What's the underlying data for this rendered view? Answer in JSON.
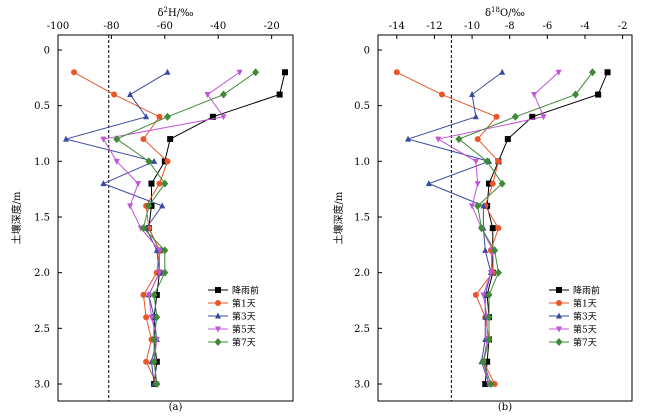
{
  "chart_data": [
    {
      "type": "line",
      "panel_label": "(a)",
      "xlabel_base": "δ",
      "xlabel_sup": "2",
      "xlabel_rest": "H/‰",
      "ylabel": "土壤深度/m",
      "xlim": [
        -100,
        -12
      ],
      "ylim": [
        0,
        3.1
      ],
      "x_ticks": [
        -100,
        -80,
        -60,
        -40,
        -20
      ],
      "y_ticks": [
        0,
        0.5,
        1.0,
        1.5,
        2.0,
        2.5,
        3.0
      ],
      "y_tick_labels": [
        "0",
        "0.5",
        "1.0",
        "1.5",
        "2.0",
        "2.5",
        "3.0"
      ],
      "reference_line_x": -81,
      "legend_position": "lower-right",
      "depths": [
        0.2,
        0.4,
        0.6,
        0.8,
        1.0,
        1.2,
        1.4,
        1.6,
        1.8,
        2.0,
        2.2,
        2.4,
        2.6,
        2.8,
        3.0
      ],
      "series": [
        {
          "name": "降雨前",
          "color": "#000000",
          "marker": "square",
          "values": [
            -15,
            -17,
            -42,
            -58,
            -60,
            -65,
            -65,
            -66,
            -62,
            -62,
            -63,
            -64,
            -64,
            -63,
            -64
          ]
        },
        {
          "name": "第1天",
          "color": "#e8562a",
          "marker": "circle",
          "values": [
            -94,
            -79,
            -62,
            -68,
            -59,
            -62,
            -67,
            -66,
            -62,
            -63,
            -68,
            -67,
            -65,
            -67,
            -63
          ]
        },
        {
          "name": "第3天",
          "color": "#3b4aa0",
          "marker": "triangle-up",
          "values": [
            -59,
            -73,
            -67,
            -97,
            -64,
            -83,
            -61,
            -67,
            -63,
            -62,
            -66,
            -64,
            -63,
            -65,
            -64
          ]
        },
        {
          "name": "第5天",
          "color": "#c055d8",
          "marker": "triangle-down",
          "values": [
            -32,
            -44,
            -38,
            -83,
            -78,
            -70,
            -73,
            -69,
            -62,
            -62,
            -66,
            -65,
            -63,
            -64,
            -63
          ]
        },
        {
          "name": "第7天",
          "color": "#3e8a35",
          "marker": "diamond",
          "values": [
            -26,
            -38,
            -59,
            -78,
            -66,
            -60,
            -66,
            -68,
            -60,
            -60,
            -64,
            -63,
            -64,
            -64,
            -63
          ]
        }
      ]
    },
    {
      "type": "line",
      "panel_label": "(b)",
      "xlabel_base": "δ",
      "xlabel_sup": "18",
      "xlabel_rest": "O/‰",
      "ylabel": "土壤深度/m",
      "xlim": [
        -15,
        -1.5
      ],
      "ylim": [
        0,
        3.1
      ],
      "x_ticks": [
        -14,
        -12,
        -10,
        -8,
        -6,
        -4,
        -2
      ],
      "y_ticks": [
        0,
        0.5,
        1.0,
        1.5,
        2.0,
        2.5,
        3.0
      ],
      "y_tick_labels": [
        "0",
        "0.5",
        "1.0",
        "1.5",
        "2.0",
        "2.5",
        "3.0"
      ],
      "reference_line_x": -11.1,
      "legend_position": "lower-right",
      "depths": [
        0.2,
        0.4,
        0.6,
        0.8,
        1.0,
        1.2,
        1.4,
        1.6,
        1.8,
        2.0,
        2.2,
        2.4,
        2.6,
        2.8,
        3.0
      ],
      "series": [
        {
          "name": "降雨前",
          "color": "#000000",
          "marker": "square",
          "values": [
            -2.8,
            -3.3,
            -6.8,
            -8.1,
            -8.6,
            -9.1,
            -9.2,
            -8.9,
            -8.9,
            -8.9,
            -9.2,
            -9.1,
            -9.1,
            -9.2,
            -9.3
          ]
        },
        {
          "name": "第1天",
          "color": "#e8562a",
          "marker": "circle",
          "values": [
            -14.0,
            -11.6,
            -8.7,
            -9.7,
            -8.6,
            -8.9,
            -9.3,
            -8.6,
            -9.0,
            -8.9,
            -9.8,
            -9.3,
            -9.1,
            -9.4,
            -8.8
          ]
        },
        {
          "name": "第3天",
          "color": "#3b4aa0",
          "marker": "triangle-up",
          "values": [
            -8.4,
            -10.0,
            -9.8,
            -13.4,
            -9.1,
            -12.3,
            -9.4,
            -9.4,
            -9.3,
            -9.0,
            -9.3,
            -9.3,
            -9.3,
            -9.5,
            -9.1
          ]
        },
        {
          "name": "第5天",
          "color": "#c055d8",
          "marker": "triangle-down",
          "values": [
            -5.4,
            -6.7,
            -6.2,
            -11.8,
            -9.8,
            -9.7,
            -10.0,
            -9.5,
            -8.9,
            -9.0,
            -9.4,
            -9.2,
            -9.2,
            -9.4,
            -9.1
          ]
        },
        {
          "name": "第7天",
          "color": "#3e8a35",
          "marker": "diamond",
          "values": [
            -3.6,
            -4.5,
            -7.7,
            -10.7,
            -9.2,
            -8.4,
            -9.7,
            -9.5,
            -8.8,
            -8.6,
            -9.1,
            -9.1,
            -9.1,
            -9.4,
            -9.0
          ]
        }
      ]
    }
  ]
}
